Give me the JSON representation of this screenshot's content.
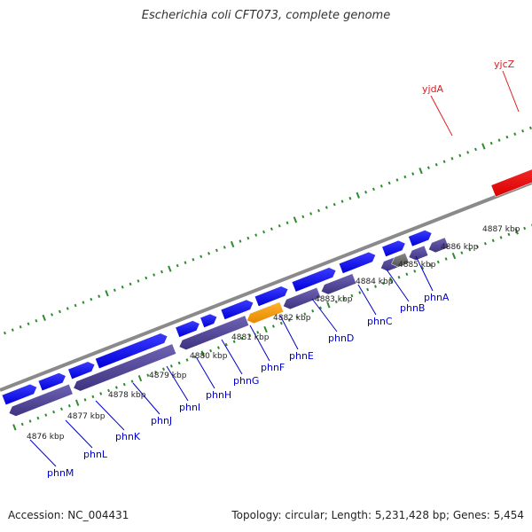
{
  "title": "Escherichia coli CFT073, complete genome",
  "footer": {
    "accession": "Accession: NC_004431",
    "stats": "Topology: circular; Length: 5,231,428 bp; Genes: 5,454"
  },
  "colors": {
    "forward_gene": "#0000ff",
    "reverse_gene": "#4b3f8f",
    "highlight_gene": "#ff9900",
    "grey_gene": "#666666",
    "red_gene": "#ff0000",
    "backbone": "#8a8a8a",
    "ticks": "#2e8b2e",
    "label_blue": "#0000cc",
    "label_red": "#e41a1c"
  },
  "scale_labels": [
    "4876 kbp",
    "4877 kbp",
    "4878 kbp",
    "4879 kbp",
    "4880 kbp",
    "4881 kbp",
    "4882 kbp",
    "4883 kbp",
    "4884 kbp",
    "4885 kbp",
    "4886 kbp",
    "4887 kbp"
  ],
  "gene_labels": [
    "phnM",
    "phnL",
    "phnK",
    "phnJ",
    "phnI",
    "phnH",
    "phnG",
    "phnF",
    "phnE",
    "phnD",
    "phnC",
    "phnB",
    "phnA",
    "yjdA",
    "yjcZ"
  ]
}
